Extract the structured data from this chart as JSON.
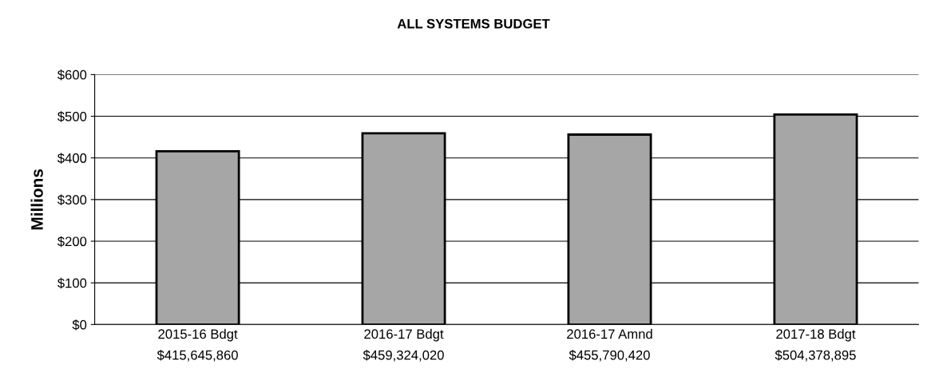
{
  "chart_data": {
    "type": "bar",
    "title": "ALL SYSTEMS BUDGET",
    "ylabel": "Millions",
    "categories": [
      "2015-16 Bdgt\n$415,645,860",
      "2016-17 Bdgt\n$459,324,020",
      "2016-17 Amnd\n$455,790,420",
      "2017-18 Bdgt\n$504,378,895"
    ],
    "values": [
      416,
      459,
      456,
      504
    ],
    "color": "#a6a6a6",
    "ylim": [
      0,
      600
    ],
    "yticks": [
      {
        "value": 0,
        "label": "$0"
      },
      {
        "value": 100,
        "label": "$100"
      },
      {
        "value": 200,
        "label": "$200"
      },
      {
        "value": 300,
        "label": "$300"
      },
      {
        "value": 400,
        "label": "$400"
      },
      {
        "value": 500,
        "label": "$500"
      },
      {
        "value": 600,
        "label": "$600"
      }
    ],
    "grid": "y",
    "legend": false
  }
}
